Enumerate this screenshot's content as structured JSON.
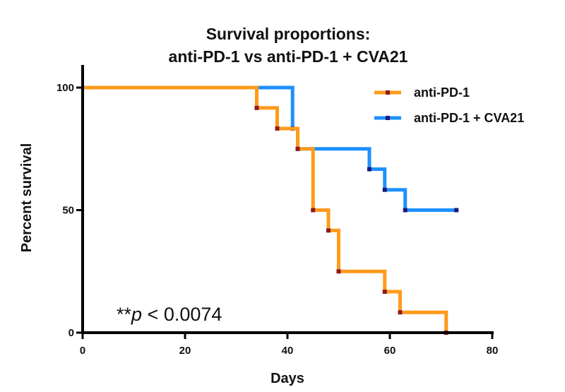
{
  "chart_data": {
    "type": "line",
    "subtype": "kaplan-meier-step",
    "title_line1": "Survival proportions:",
    "title_line2": "anti-PD-1 vs anti-PD-1 + CVA21",
    "xlabel": "Days",
    "ylabel": "Percent survival",
    "xlim": [
      0,
      80
    ],
    "ylim": [
      0,
      100
    ],
    "x_ticks": [
      0,
      20,
      40,
      60,
      80
    ],
    "y_ticks": [
      0,
      50,
      100
    ],
    "grid": false,
    "legend_position": "top-right",
    "annotation": {
      "prefix": "**",
      "italic": "p",
      "suffix": " < 0.0074"
    },
    "series": [
      {
        "name": "anti-PD-1",
        "color": "#FF9A1A",
        "marker_color": "#8B1A1A",
        "steps": [
          [
            0,
            100
          ],
          [
            34,
            91.7
          ],
          [
            38,
            83.3
          ],
          [
            42,
            75
          ],
          [
            45,
            50
          ],
          [
            48,
            41.7
          ],
          [
            50,
            25
          ],
          [
            59,
            16.7
          ],
          [
            62,
            8.3
          ],
          [
            71,
            0
          ]
        ],
        "end_x": 71
      },
      {
        "name": "anti-PD-1 + CVA21",
        "color": "#1E90FF",
        "marker_color": "#1A1A7A",
        "steps": [
          [
            0,
            100
          ],
          [
            41,
            83.3
          ],
          [
            42,
            75
          ],
          [
            56,
            66.7
          ],
          [
            59,
            58.3
          ],
          [
            63,
            50
          ]
        ],
        "end_x": 73,
        "censored": [
          [
            73,
            50
          ]
        ]
      }
    ]
  }
}
